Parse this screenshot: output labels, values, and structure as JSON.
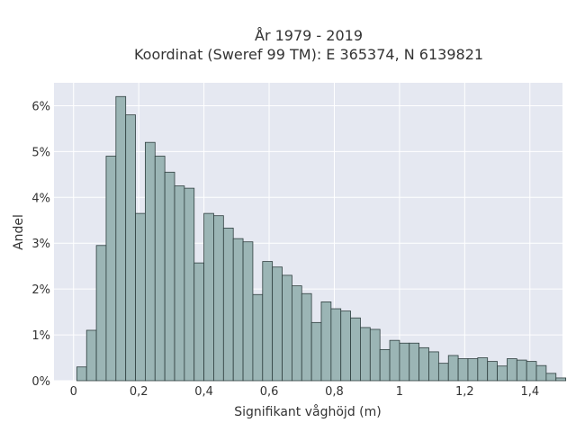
{
  "chart_data": {
    "type": "bar",
    "title_line1": "År 1979 - 2019",
    "title_line2": "Koordinat (Sweref 99 TM): E 365374, N 6139821",
    "xlabel": "Signifikant våghöjd (m)",
    "ylabel": "Andel",
    "xlim": [
      -0.06,
      1.5
    ],
    "ylim": [
      0,
      0.065
    ],
    "xticks": [
      0,
      0.2,
      0.4,
      0.6,
      0.8,
      1.0,
      1.2,
      1.4
    ],
    "xtick_labels": [
      "0",
      "0,2",
      "0,4",
      "0,6",
      "0,8",
      "1",
      "1,2",
      "1,4"
    ],
    "yticks": [
      0,
      0.01,
      0.02,
      0.03,
      0.04,
      0.05,
      0.06
    ],
    "ytick_labels": [
      "0%",
      "1%",
      "2%",
      "3%",
      "4%",
      "5%",
      "6%"
    ],
    "bin_width": 0.03,
    "bin_start": 0.01,
    "values": [
      0.003,
      0.011,
      0.0295,
      0.049,
      0.062,
      0.058,
      0.0365,
      0.052,
      0.049,
      0.0455,
      0.0425,
      0.042,
      0.0257,
      0.0365,
      0.036,
      0.0333,
      0.031,
      0.0303,
      0.0188,
      0.026,
      0.0248,
      0.023,
      0.0207,
      0.019,
      0.0127,
      0.0172,
      0.0157,
      0.0152,
      0.0137,
      0.0116,
      0.0112,
      0.0068,
      0.0088,
      0.0082,
      0.0082,
      0.0072,
      0.0063,
      0.0038,
      0.0055,
      0.0048,
      0.0048,
      0.005,
      0.0042,
      0.0032,
      0.0048,
      0.0045,
      0.0042,
      0.0033,
      0.0016,
      0.0006
    ],
    "colors": {
      "background": "#e5e8f1",
      "bar_fill": "#9bb5b5",
      "bar_edge": "#2f3f3f",
      "grid": "#ffffff"
    }
  }
}
